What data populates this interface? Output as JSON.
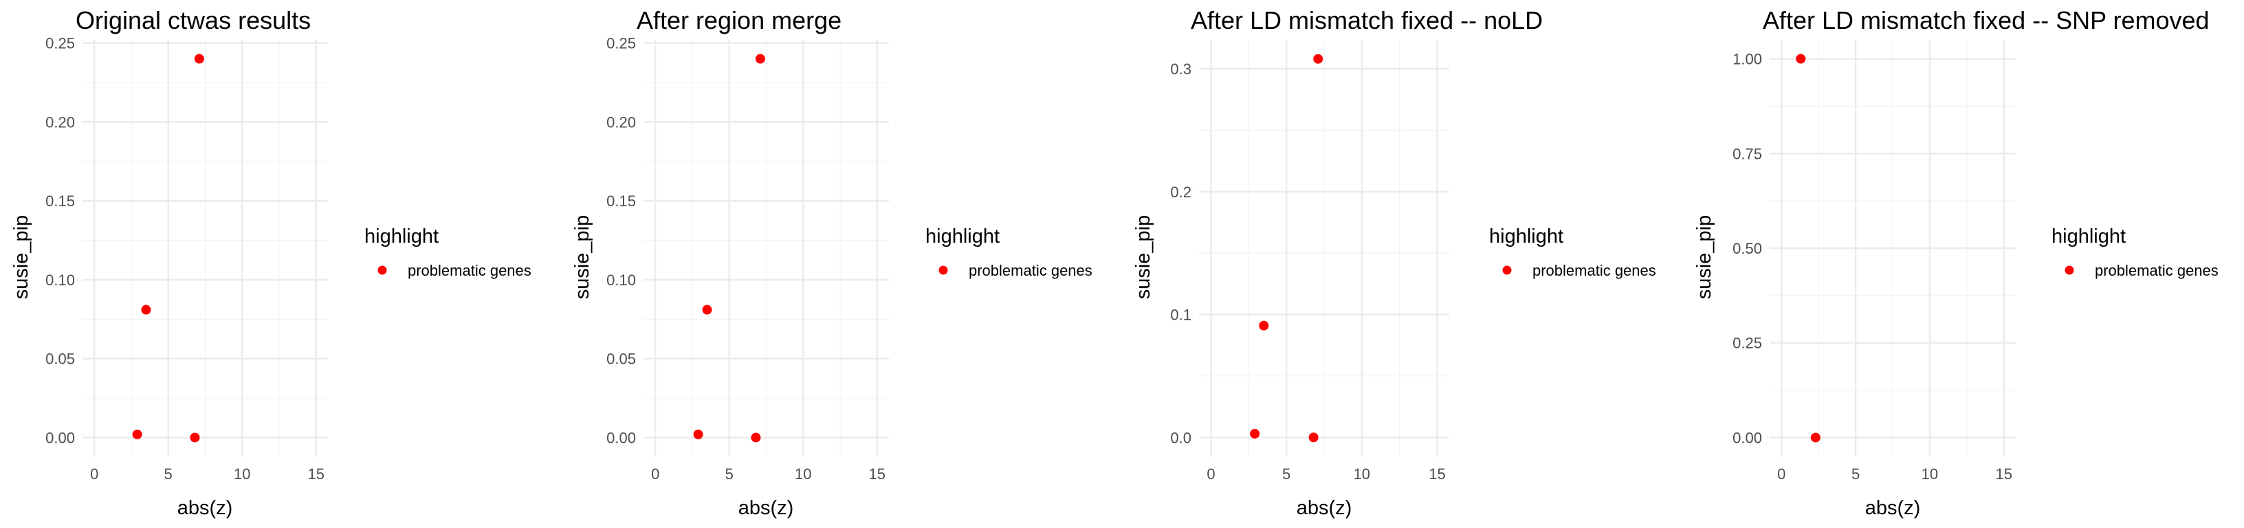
{
  "chart_data": [
    {
      "type": "scatter",
      "title": "Original ctwas results",
      "xlabel": "abs(z)",
      "ylabel": "susie_pip",
      "xlim": [
        -0.8,
        15.8
      ],
      "ylim": [
        -0.012,
        0.252
      ],
      "x_ticks": [
        0,
        5,
        10,
        15
      ],
      "x_tick_labels": [
        "0",
        "5",
        "10",
        "15"
      ],
      "y_ticks": [
        0.0,
        0.05,
        0.1,
        0.15,
        0.2,
        0.25
      ],
      "y_tick_labels": [
        "0.00",
        "0.05",
        "0.10",
        "0.15",
        "0.20",
        "0.25"
      ],
      "grid": true,
      "legend": {
        "title": "highlight",
        "entries": [
          "problematic genes"
        ],
        "position": "right"
      },
      "series": [
        {
          "name": "problematic genes",
          "color": "#ff0000",
          "x": [
            7.1,
            3.5,
            2.9,
            6.8
          ],
          "y": [
            0.24,
            0.081,
            0.002,
            0.0
          ]
        }
      ]
    },
    {
      "type": "scatter",
      "title": "After region merge",
      "xlabel": "abs(z)",
      "ylabel": "susie_pip",
      "xlim": [
        -0.8,
        15.8
      ],
      "ylim": [
        -0.012,
        0.252
      ],
      "x_ticks": [
        0,
        5,
        10,
        15
      ],
      "x_tick_labels": [
        "0",
        "5",
        "10",
        "15"
      ],
      "y_ticks": [
        0.0,
        0.05,
        0.1,
        0.15,
        0.2,
        0.25
      ],
      "y_tick_labels": [
        "0.00",
        "0.05",
        "0.10",
        "0.15",
        "0.20",
        "0.25"
      ],
      "grid": true,
      "legend": {
        "title": "highlight",
        "entries": [
          "problematic genes"
        ],
        "position": "right"
      },
      "series": [
        {
          "name": "problematic genes",
          "color": "#ff0000",
          "x": [
            7.1,
            3.5,
            2.9,
            6.8
          ],
          "y": [
            0.24,
            0.081,
            0.002,
            0.0
          ]
        }
      ]
    },
    {
      "type": "scatter",
      "title": "After LD mismatch fixed -- noLD",
      "xlabel": "abs(z)",
      "ylabel": "susie_pip",
      "xlim": [
        -0.8,
        15.8
      ],
      "ylim": [
        -0.0155,
        0.3235
      ],
      "x_ticks": [
        0,
        5,
        10,
        15
      ],
      "x_tick_labels": [
        "0",
        "5",
        "10",
        "15"
      ],
      "y_ticks": [
        0.0,
        0.1,
        0.2,
        0.3
      ],
      "y_tick_labels": [
        "0.0",
        "0.1",
        "0.2",
        "0.3"
      ],
      "grid": true,
      "legend": {
        "title": "highlight",
        "entries": [
          "problematic genes"
        ],
        "position": "right"
      },
      "series": [
        {
          "name": "problematic genes",
          "color": "#ff0000",
          "x": [
            7.1,
            3.5,
            2.9,
            6.8
          ],
          "y": [
            0.308,
            0.091,
            0.003,
            0.0
          ]
        }
      ]
    },
    {
      "type": "scatter",
      "title": "After LD mismatch fixed -- SNP removed",
      "xlabel": "abs(z)",
      "ylabel": "susie_pip",
      "xlim": [
        -0.8,
        15.8
      ],
      "ylim": [
        -0.05,
        1.05
      ],
      "x_ticks": [
        0,
        5,
        10,
        15
      ],
      "x_tick_labels": [
        "0",
        "5",
        "10",
        "15"
      ],
      "y_ticks": [
        0.0,
        0.25,
        0.5,
        0.75,
        1.0
      ],
      "y_tick_labels": [
        "0.00",
        "0.25",
        "0.50",
        "0.75",
        "1.00"
      ],
      "grid": true,
      "legend": {
        "title": "highlight",
        "entries": [
          "problematic genes"
        ],
        "position": "right"
      },
      "series": [
        {
          "name": "problematic genes",
          "color": "#ff0000",
          "x": [
            1.3,
            2.3
          ],
          "y": [
            1.0,
            0.0
          ]
        }
      ]
    }
  ]
}
